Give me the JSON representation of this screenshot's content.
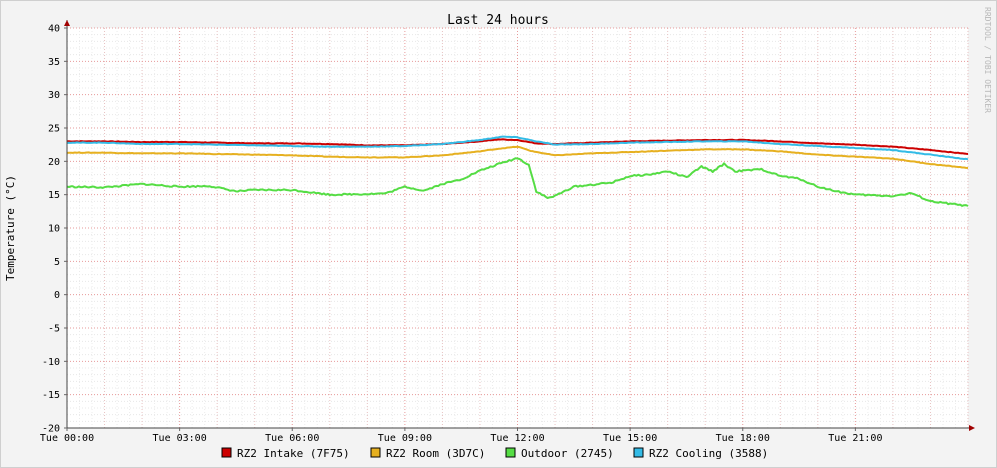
{
  "chart_data": {
    "type": "line",
    "title": "Last 24 hours",
    "ylabel": "Temperature (°C)",
    "xlabel": "",
    "ylim": [
      -20,
      40
    ],
    "yticks": [
      40,
      35,
      30,
      25,
      20,
      15,
      10,
      5,
      0,
      -5,
      -10,
      -15,
      -20
    ],
    "xlim_hours": [
      0,
      24
    ],
    "xticks": [
      {
        "hour": 0,
        "label": "Tue 00:00"
      },
      {
        "hour": 3,
        "label": "Tue 03:00"
      },
      {
        "hour": 6,
        "label": "Tue 06:00"
      },
      {
        "hour": 9,
        "label": "Tue 09:00"
      },
      {
        "hour": 12,
        "label": "Tue 12:00"
      },
      {
        "hour": 15,
        "label": "Tue 15:00"
      },
      {
        "hour": 18,
        "label": "Tue 18:00"
      },
      {
        "hour": 21,
        "label": "Tue 21:00"
      }
    ],
    "grid": true,
    "legend_position": "bottom",
    "watermark": "RRDTOOL / TOBI OETIKER",
    "series": [
      {
        "name": "RZ2 Intake (7F75)",
        "color": "#cc0000",
        "points": [
          [
            0,
            23.0
          ],
          [
            1,
            23.0
          ],
          [
            2,
            22.9
          ],
          [
            3,
            22.9
          ],
          [
            4,
            22.8
          ],
          [
            5,
            22.7
          ],
          [
            6,
            22.7
          ],
          [
            7,
            22.6
          ],
          [
            8,
            22.4
          ],
          [
            9,
            22.4
          ],
          [
            10,
            22.6
          ],
          [
            11,
            23.0
          ],
          [
            11.5,
            23.3
          ],
          [
            12,
            23.2
          ],
          [
            12.5,
            22.7
          ],
          [
            13,
            22.6
          ],
          [
            14,
            22.8
          ],
          [
            15,
            23.0
          ],
          [
            16,
            23.1
          ],
          [
            17,
            23.2
          ],
          [
            18,
            23.2
          ],
          [
            19,
            23.0
          ],
          [
            20,
            22.7
          ],
          [
            21,
            22.5
          ],
          [
            22,
            22.2
          ],
          [
            23,
            21.7
          ],
          [
            24,
            21.1
          ]
        ]
      },
      {
        "name": "RZ2 Room (3D7C)",
        "color": "#e6b020",
        "points": [
          [
            0,
            21.3
          ],
          [
            1,
            21.3
          ],
          [
            2,
            21.2
          ],
          [
            3,
            21.2
          ],
          [
            4,
            21.1
          ],
          [
            5,
            21.0
          ],
          [
            6,
            20.9
          ],
          [
            7,
            20.7
          ],
          [
            8,
            20.6
          ],
          [
            9,
            20.6
          ],
          [
            10,
            20.9
          ],
          [
            11,
            21.5
          ],
          [
            11.5,
            21.9
          ],
          [
            12,
            22.2
          ],
          [
            12.4,
            21.5
          ],
          [
            13,
            20.9
          ],
          [
            14,
            21.2
          ],
          [
            15,
            21.4
          ],
          [
            16,
            21.6
          ],
          [
            17,
            21.8
          ],
          [
            18,
            21.8
          ],
          [
            19,
            21.5
          ],
          [
            20,
            21.0
          ],
          [
            21,
            20.7
          ],
          [
            22,
            20.4
          ],
          [
            23,
            19.6
          ],
          [
            24,
            19.0
          ]
        ]
      },
      {
        "name": "Outdoor (2745)",
        "color": "#55dd44",
        "points": [
          [
            0,
            16.2
          ],
          [
            1,
            16.1
          ],
          [
            2,
            16.6
          ],
          [
            3,
            16.2
          ],
          [
            3.8,
            16.3
          ],
          [
            4.5,
            15.5
          ],
          [
            5,
            15.7
          ],
          [
            6,
            15.7
          ],
          [
            7,
            15.0
          ],
          [
            8,
            15.1
          ],
          [
            8.5,
            15.2
          ],
          [
            9,
            16.2
          ],
          [
            9.5,
            15.6
          ],
          [
            10,
            16.6
          ],
          [
            10.5,
            17.3
          ],
          [
            11,
            18.6
          ],
          [
            11.5,
            19.6
          ],
          [
            12,
            20.5
          ],
          [
            12.3,
            19.5
          ],
          [
            12.5,
            15.5
          ],
          [
            12.8,
            14.5
          ],
          [
            13,
            14.8
          ],
          [
            13.5,
            16.2
          ],
          [
            14,
            16.5
          ],
          [
            14.5,
            16.8
          ],
          [
            15,
            17.8
          ],
          [
            15.5,
            18.0
          ],
          [
            16,
            18.5
          ],
          [
            16.5,
            17.6
          ],
          [
            16.9,
            19.2
          ],
          [
            17.2,
            18.5
          ],
          [
            17.5,
            19.6
          ],
          [
            17.8,
            18.5
          ],
          [
            18.5,
            18.8
          ],
          [
            19,
            17.8
          ],
          [
            19.5,
            17.4
          ],
          [
            20,
            16.2
          ],
          [
            20.5,
            15.5
          ],
          [
            21,
            15.0
          ],
          [
            22,
            14.8
          ],
          [
            22.5,
            15.2
          ],
          [
            23,
            14.0
          ],
          [
            24,
            13.3
          ]
        ]
      },
      {
        "name": "RZ2 Cooling (3588)",
        "color": "#33bbe6",
        "points": [
          [
            0,
            22.8
          ],
          [
            1,
            22.8
          ],
          [
            2,
            22.6
          ],
          [
            3,
            22.6
          ],
          [
            4,
            22.5
          ],
          [
            5,
            22.4
          ],
          [
            6,
            22.3
          ],
          [
            7,
            22.2
          ],
          [
            8,
            22.2
          ],
          [
            9,
            22.3
          ],
          [
            10,
            22.6
          ],
          [
            11,
            23.2
          ],
          [
            11.6,
            23.7
          ],
          [
            12,
            23.6
          ],
          [
            12.5,
            23.0
          ],
          [
            13,
            22.5
          ],
          [
            14,
            22.6
          ],
          [
            15,
            22.8
          ],
          [
            16,
            22.9
          ],
          [
            17,
            23.0
          ],
          [
            18,
            23.0
          ],
          [
            19,
            22.6
          ],
          [
            20,
            22.3
          ],
          [
            21,
            22.0
          ],
          [
            22,
            21.7
          ],
          [
            23,
            21.0
          ],
          [
            24,
            20.3
          ]
        ]
      }
    ]
  }
}
